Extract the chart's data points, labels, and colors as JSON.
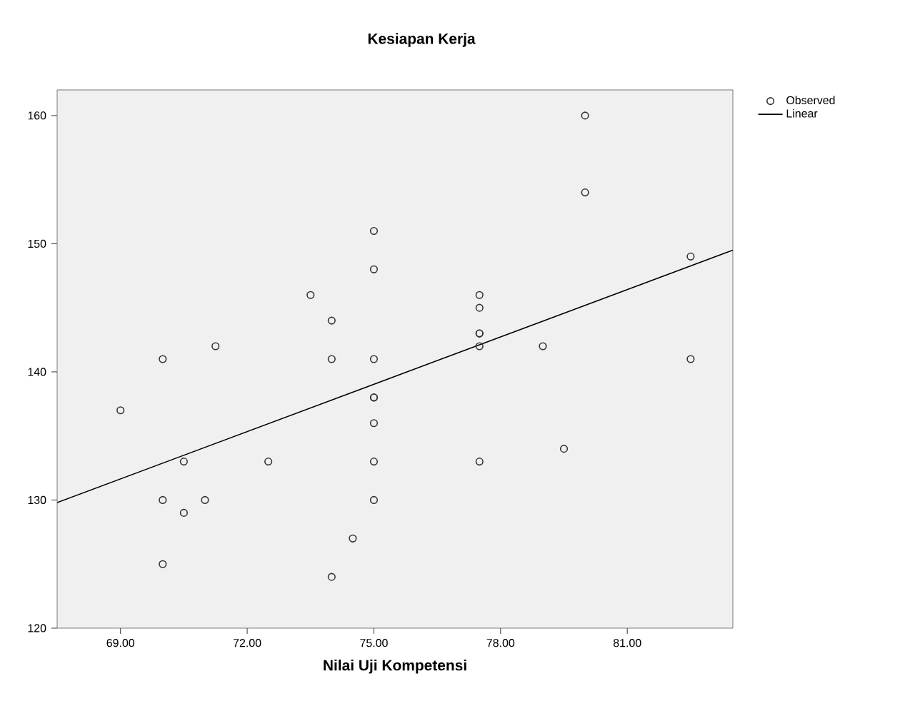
{
  "chart_data": {
    "type": "scatter",
    "title": "Kesiapan Kerja",
    "xlabel": "Nilai Uji Kompetensi",
    "xlim": [
      67.5,
      83.5
    ],
    "ylim": [
      120,
      162
    ],
    "xticks": [
      {
        "value": 69,
        "label": "69.00"
      },
      {
        "value": 72,
        "label": "72.00"
      },
      {
        "value": 75,
        "label": "75.00"
      },
      {
        "value": 78,
        "label": "78.00"
      },
      {
        "value": 81,
        "label": "81.00"
      }
    ],
    "yticks": [
      120,
      130,
      140,
      150,
      160
    ],
    "legend": "top right",
    "grid": false,
    "series": [
      {
        "name": "Observed",
        "type": "scatter",
        "marker": "circle",
        "color": "#333333",
        "x": [
          69,
          70,
          70,
          70,
          70.5,
          70.5,
          71,
          71.25,
          72.5,
          73.5,
          74,
          74,
          74,
          74.5,
          75,
          75,
          75,
          75,
          75,
          75,
          75,
          75,
          77.5,
          77.5,
          77.5,
          77.5,
          77.5,
          77.5,
          79,
          79.5,
          80,
          80,
          82.5,
          82.5
        ],
        "values": [
          137,
          141,
          130,
          125,
          133,
          129,
          130,
          142,
          133,
          146,
          144,
          141,
          124,
          127,
          151,
          148,
          141,
          138,
          138,
          136,
          133,
          130,
          146,
          145,
          143,
          143,
          142,
          133,
          142,
          134,
          160,
          154,
          149,
          141
        ]
      },
      {
        "name": "Linear",
        "type": "line",
        "marker": "none",
        "line_style": "solid",
        "color": "#000000",
        "x": [
          67.5,
          83.5
        ],
        "values": [
          129.8,
          149.5
        ]
      }
    ]
  }
}
